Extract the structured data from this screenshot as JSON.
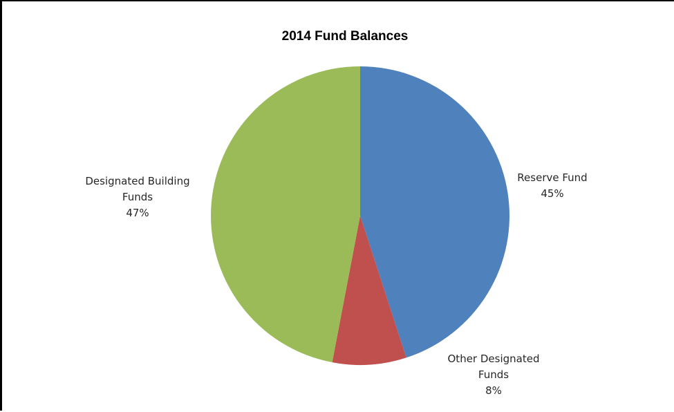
{
  "chart_data": {
    "type": "pie",
    "title": "2014 Fund Balances",
    "slices": [
      {
        "name": "Reserve Fund",
        "label_lines": [
          "Reserve Fund"
        ],
        "percent_label": "45%",
        "value": 45,
        "color": "#4F81BD"
      },
      {
        "name": "Other Designated Funds",
        "label_lines": [
          "Other Designated",
          "Funds"
        ],
        "percent_label": "8%",
        "value": 8,
        "color": "#C0504D"
      },
      {
        "name": "Designated Building Funds",
        "label_lines": [
          "Designated Building",
          "Funds"
        ],
        "percent_label": "47%",
        "value": 47,
        "color": "#9BBB59"
      }
    ],
    "start_angle": "12 o'clock",
    "direction": "clockwise",
    "legend": "none"
  }
}
